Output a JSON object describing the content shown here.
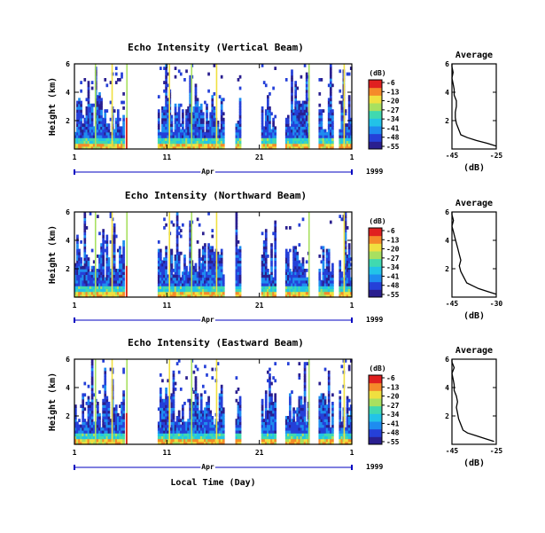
{
  "chart_data": [
    {
      "type": "heatmap",
      "title": "Echo Intensity (Vertical Beam)",
      "ylabel": "Height (km)",
      "yticks": [
        "6",
        "4",
        "2"
      ],
      "ylim": [
        0,
        6
      ],
      "xticks": [
        "1",
        "11",
        "21",
        "1"
      ],
      "xlim": [
        1,
        31
      ],
      "month_label": "Apr",
      "year_label": "1999",
      "colorbar": {
        "unit": "(dB)",
        "ticks": [
          "-6",
          "-13",
          "-20",
          "-27",
          "-34",
          "-41",
          "-48",
          "-55"
        ]
      },
      "average_profile": {
        "title": "Average",
        "xlabel": "(dB)",
        "xticks": [
          "-45",
          "-25"
        ],
        "yticks": [
          "6",
          "4",
          "2"
        ],
        "xlim": [
          -45,
          -25
        ],
        "ylim": [
          0,
          6
        ],
        "height_km": [
          0.2,
          0.4,
          0.6,
          0.8,
          1.0,
          1.4,
          1.8,
          2.2,
          2.6,
          3.0,
          3.4,
          3.8,
          4.2,
          4.6,
          5.0,
          5.4,
          5.8,
          6.0
        ],
        "value_db": [
          -25,
          -29,
          -34,
          -38,
          -41,
          -42,
          -43,
          -43.5,
          -43.5,
          -43,
          -43,
          -44,
          -44,
          -44.5,
          -45,
          -44.5,
          -45,
          -45
        ]
      }
    },
    {
      "type": "heatmap",
      "title": "Echo Intensity (Northward Beam)",
      "ylabel": "Height (km)",
      "yticks": [
        "6",
        "4",
        "2"
      ],
      "ylim": [
        0,
        6
      ],
      "xticks": [
        "1",
        "11",
        "21",
        "1"
      ],
      "xlim": [
        1,
        31
      ],
      "month_label": "Apr",
      "year_label": "1999",
      "colorbar": {
        "unit": "(dB)",
        "ticks": [
          "-6",
          "-13",
          "-20",
          "-27",
          "-34",
          "-41",
          "-48",
          "-55"
        ]
      },
      "average_profile": {
        "title": "Average",
        "xlabel": "(dB)",
        "xticks": [
          "-45",
          "-30"
        ],
        "yticks": [
          "6",
          "4",
          "2"
        ],
        "xlim": [
          -45,
          -30
        ],
        "ylim": [
          0,
          6
        ],
        "height_km": [
          0.2,
          0.4,
          0.6,
          0.8,
          1.0,
          1.4,
          1.8,
          2.2,
          2.6,
          3.0,
          3.4,
          3.8,
          4.2,
          4.6,
          5.0,
          5.4,
          5.8,
          6.0
        ],
        "value_db": [
          -30,
          -33,
          -36,
          -38,
          -40,
          -41,
          -42,
          -42.5,
          -42,
          -42.5,
          -43,
          -43.5,
          -44,
          -44.5,
          -45,
          -44.5,
          -45,
          -45
        ]
      }
    },
    {
      "type": "heatmap",
      "title": "Echo Intensity (Eastward Beam)",
      "ylabel": "Height (km)",
      "yticks": [
        "6",
        "4",
        "2"
      ],
      "ylim": [
        0,
        6
      ],
      "xticks": [
        "1",
        "11",
        "21",
        "1"
      ],
      "xlim": [
        1,
        31
      ],
      "month_label": "Apr",
      "year_label": "1999",
      "xlabel": "Local Time (Day)",
      "colorbar": {
        "unit": "(dB)",
        "ticks": [
          "-6",
          "-13",
          "-20",
          "-27",
          "-34",
          "-41",
          "-48",
          "-55"
        ]
      },
      "average_profile": {
        "title": "Average",
        "xlabel": "(dB)",
        "xticks": [
          "-45",
          "-25"
        ],
        "yticks": [
          "6",
          "4",
          "2"
        ],
        "xlim": [
          -45,
          -25
        ],
        "ylim": [
          0,
          6
        ],
        "height_km": [
          0.2,
          0.4,
          0.6,
          0.8,
          1.0,
          1.4,
          1.8,
          2.2,
          2.6,
          3.0,
          3.4,
          3.8,
          4.2,
          4.6,
          5.0,
          5.4,
          5.8,
          6.0
        ],
        "value_db": [
          -26,
          -30,
          -34,
          -38,
          -40,
          -41,
          -42,
          -42.5,
          -43,
          -42.5,
          -43,
          -44,
          -44,
          -44.5,
          -45,
          -44,
          -45,
          -45
        ]
      }
    }
  ],
  "colors": {
    "background": "#ffffff",
    "axes": "#000000",
    "colormap": [
      "#2a1f8f",
      "#2540d8",
      "#1e8cf0",
      "#22c3e8",
      "#40d9b0",
      "#a8e060",
      "#f0e040",
      "#f58a2a",
      "#e02020"
    ]
  }
}
